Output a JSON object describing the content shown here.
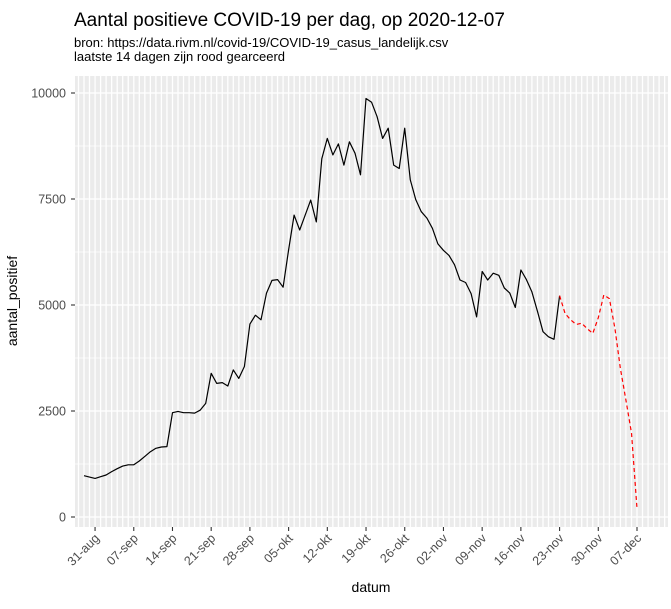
{
  "title": "Aantal positieve COVID-19 per dag, op 2020-12-07",
  "subtitle_line1": "bron: https://data.rivm.nl/covid-19/COVID-19_casus_landelijk.csv",
  "subtitle_line2": "laatste 14 dagen zijn rood gearceerd",
  "axes": {
    "x_title": "datum",
    "y_title": "aantal_positief",
    "x_tick_labels": [
      "31-aug",
      "07-sep",
      "14-sep",
      "21-sep",
      "28-sep",
      "05-okt",
      "12-okt",
      "19-okt",
      "26-okt",
      "02-nov",
      "09-nov",
      "16-nov",
      "23-nov",
      "30-nov",
      "07-dec"
    ],
    "y_tick_labels": [
      "0",
      "2500",
      "5000",
      "7500",
      "10000"
    ]
  },
  "colors": {
    "panel_background": "#EBEBEB",
    "gridline": "#FFFFFF",
    "line_main": "#000000",
    "line_recent": "#FF0000",
    "axis_text": "#4D4D4D",
    "tick_mark": "#333333"
  },
  "chart_data": {
    "type": "line",
    "title": "Aantal positieve COVID-19 per dag, op 2020-12-07",
    "xlabel": "datum",
    "ylabel": "aantal_positief",
    "x_unit": "day",
    "x_start_date": "2020-08-29",
    "x_end_date": "2020-12-07",
    "x_tick_labels": [
      "31-aug",
      "07-sep",
      "14-sep",
      "21-sep",
      "28-sep",
      "05-okt",
      "12-okt",
      "19-okt",
      "26-okt",
      "02-nov",
      "09-nov",
      "16-nov",
      "23-nov",
      "30-nov",
      "07-dec"
    ],
    "y_ticks": [
      0,
      2500,
      5000,
      7500,
      10000
    ],
    "y_minor_ticks": [
      1250,
      3750,
      6250,
      8750
    ],
    "ylim": [
      -240,
      10400
    ],
    "grid": "gray-panel-white-gridlines",
    "legend": "none",
    "values": [
      975,
      940,
      910,
      950,
      990,
      1070,
      1140,
      1200,
      1230,
      1230,
      1320,
      1430,
      1540,
      1620,
      1650,
      1660,
      2460,
      2490,
      2460,
      2460,
      2450,
      2520,
      2680,
      3390,
      3150,
      3170,
      3090,
      3470,
      3270,
      3550,
      4550,
      4760,
      4650,
      5280,
      5580,
      5600,
      5420,
      6300,
      7120,
      6770,
      7120,
      7475,
      6960,
      8450,
      8930,
      8540,
      8800,
      8300,
      8850,
      8580,
      8070,
      9870,
      9780,
      9440,
      8930,
      9170,
      8300,
      8220,
      9170,
      7950,
      7480,
      7200,
      7050,
      6810,
      6440,
      6290,
      6170,
      5950,
      5590,
      5530,
      5270,
      4720,
      5790,
      5590,
      5750,
      5700,
      5400,
      5280,
      4940,
      5825,
      5600,
      5310,
      4850,
      4370,
      4250,
      4190,
      5220,
      4800,
      4650,
      4540,
      4570,
      4440,
      4330,
      4700,
      5235,
      5150,
      4450,
      3500,
      2760,
      1980,
      200
    ],
    "recent_start_index": 86,
    "series": [
      {
        "name": "aantal_positief t/m 23-nov",
        "style": "solid",
        "color": "#000000",
        "index_range": [
          0,
          86
        ]
      },
      {
        "name": "laatste 14 dagen (rood)",
        "style": "dashed",
        "color": "#FF0000",
        "index_range": [
          86,
          100
        ]
      }
    ]
  }
}
